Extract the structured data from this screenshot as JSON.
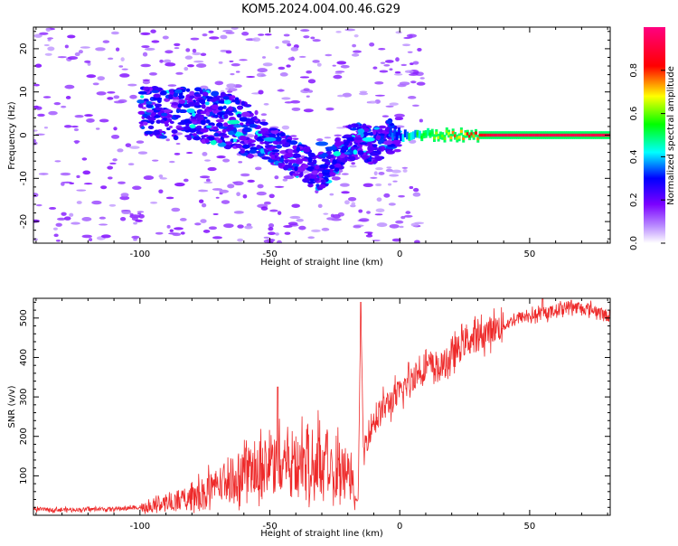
{
  "title": "KOM5.2024.004.00.46.G29",
  "chart_data": [
    {
      "type": "heatmap",
      "xlabel": "Height of straight line (km)",
      "ylabel": "Frequency (Hz)",
      "xlim": [
        -141,
        81
      ],
      "ylim": [
        -25,
        25
      ],
      "xticks": [
        -100,
        -50,
        0,
        50
      ],
      "yticks": [
        -20,
        -10,
        0,
        10,
        20
      ],
      "colorbar": {
        "label": "Normalized spectral amplitude",
        "range": [
          0,
          1
        ],
        "ticks": [
          0.0,
          0.2,
          0.4,
          0.6,
          0.8
        ],
        "colormap": [
          "#ffffff",
          "#7b00ff",
          "#0000ff",
          "#00ffff",
          "#00ff00",
          "#ffff00",
          "#ff0000",
          "#ff0080"
        ]
      },
      "ridge_points": [
        [
          -80,
          5
        ],
        [
          -72,
          4
        ],
        [
          -64,
          3
        ],
        [
          -58,
          1
        ],
        [
          -50,
          -2
        ],
        [
          -44,
          -4
        ],
        [
          -38,
          -6
        ],
        [
          -32,
          -9
        ],
        [
          -26,
          -6
        ],
        [
          -20,
          -2
        ],
        [
          -15,
          -1
        ],
        [
          -10,
          -3
        ],
        [
          -5,
          0
        ],
        [
          0,
          0
        ],
        [
          10,
          -1
        ],
        [
          20,
          0
        ],
        [
          30,
          0
        ],
        [
          40,
          0
        ],
        [
          50,
          0
        ],
        [
          60,
          0
        ],
        [
          70,
          0
        ],
        [
          80,
          0
        ]
      ]
    },
    {
      "type": "line",
      "xlabel": "Height of straight line (km)",
      "ylabel": "SNR (v/v)",
      "xlim": [
        -141,
        81
      ],
      "ylim": [
        0,
        550
      ],
      "xticks": [
        -100,
        -50,
        0,
        50
      ],
      "yticks": [
        100,
        200,
        300,
        400,
        500
      ],
      "color": "#ee2a2a",
      "x": [
        -140,
        -130,
        -120,
        -110,
        -100,
        -90,
        -80,
        -70,
        -60,
        -55,
        -50,
        -45,
        -40,
        -35,
        -30,
        -25,
        -20,
        -17,
        -16,
        -15,
        -14,
        -12,
        -10,
        -5,
        0,
        5,
        10,
        15,
        20,
        25,
        30,
        35,
        40,
        45,
        50,
        55,
        60,
        65,
        70,
        75,
        80
      ],
      "y": [
        15,
        14,
        15,
        16,
        20,
        30,
        50,
        80,
        110,
        130,
        140,
        150,
        140,
        145,
        140,
        130,
        120,
        40,
        40,
        540,
        160,
        210,
        240,
        280,
        310,
        350,
        380,
        370,
        400,
        440,
        450,
        470,
        480,
        500,
        505,
        510,
        520,
        530,
        525,
        520,
        505
      ],
      "peaks": [
        [
          -47,
          325
        ],
        [
          -15,
          540
        ],
        [
          55,
          550
        ],
        [
          66,
          545
        ]
      ]
    }
  ]
}
